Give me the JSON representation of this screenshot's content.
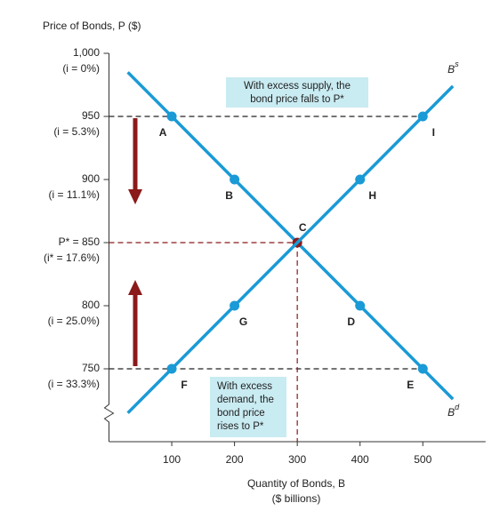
{
  "chart_data": {
    "type": "line",
    "y_axis_title": "Price of Bonds, P ($)",
    "x_axis_title": [
      "Quantity of Bonds, B",
      "($ billions)"
    ],
    "xlim": [
      0,
      600
    ],
    "xticks": [
      100,
      200,
      300,
      400,
      500
    ],
    "ylim": [
      700,
      1000
    ],
    "yticks": [
      {
        "value": 1000,
        "label": "1,000"
      },
      950,
      900,
      {
        "value": 850,
        "label": "P* = 850"
      },
      800,
      750
    ],
    "ytick_sublabels": [
      "(i = 0%)",
      "(i = 5.3%)",
      "(i = 11.1%)",
      "(i* = 17.6%)",
      "(i = 25.0%)",
      "(i = 33.3%)"
    ],
    "equilibrium_color": "#8b1a1a",
    "series": [
      {
        "name": "Bd",
        "color": "#1a9ad6",
        "x": [
          100,
          200,
          300,
          400,
          500
        ],
        "values": [
          950,
          900,
          850,
          800,
          750
        ],
        "point_labels": [
          "A",
          "B",
          "C",
          "D",
          "E"
        ]
      },
      {
        "name": "Bs",
        "color": "#1a9ad6",
        "x": [
          100,
          200,
          300,
          400,
          500
        ],
        "values": [
          750,
          800,
          850,
          900,
          950
        ],
        "point_labels": [
          "F",
          "G",
          "C",
          "H",
          "I"
        ]
      }
    ],
    "annotations": [
      [
        "With excess supply, the",
        "bond price falls to P*"
      ],
      [
        "With excess",
        "demand, the",
        "bond price",
        "rises to P*"
      ]
    ]
  }
}
